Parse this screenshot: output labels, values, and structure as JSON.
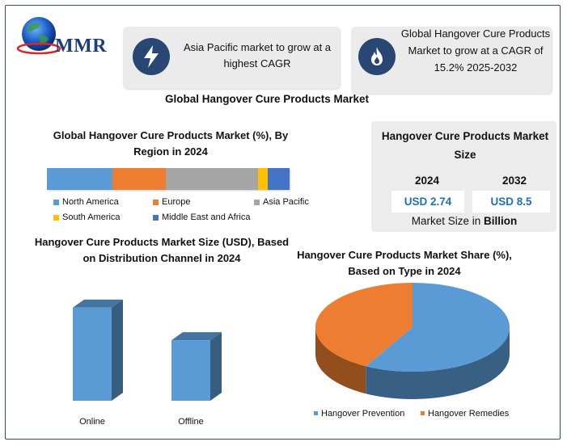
{
  "brand": {
    "name": "MMR"
  },
  "highlights": [
    {
      "icon": "lightning-icon",
      "text": "Asia Pacific market to grow at a highest CAGR"
    },
    {
      "icon": "flame-icon",
      "text": "Global Hangover Cure Products Market to grow at a CAGR of 15.2% 2025-2032"
    }
  ],
  "main_title": "Global Hangover Cure Products Market",
  "market_size": {
    "title": "Hangover Cure Products Market Size",
    "years": [
      {
        "year": "2024",
        "value": "USD 2.74"
      },
      {
        "year": "2032",
        "value": "USD 8.5"
      }
    ],
    "note_prefix": "Market Size in",
    "note_bold": "Billion"
  },
  "chart_data": [
    {
      "type": "bar",
      "orientation": "horizontal-stacked",
      "title": "Global Hangover Cure Products Market (%), By Region in 2024",
      "categories": [
        "North America",
        "Europe",
        "Asia Pacific",
        "South America",
        "Middle East and Africa"
      ],
      "values": [
        27,
        22,
        38,
        4,
        9
      ],
      "colors": [
        "#5b9bd5",
        "#ed7d31",
        "#a5a5a5",
        "#ffc000",
        "#4472c4"
      ],
      "legend": "bottom"
    },
    {
      "type": "bar",
      "title": "Hangover Cure Products Market Size (USD), Based on Distribution Channel in 2024",
      "categories": [
        "Online",
        "Offline"
      ],
      "values": [
        60,
        39
      ],
      "color": "#5b9bd5"
    },
    {
      "type": "pie",
      "title": "Hangover Cure Products Market Share (%), Based on Type in 2024",
      "categories": [
        "Hangover Prevention",
        "Hangover Remedies"
      ],
      "values": [
        58,
        42
      ],
      "colors": [
        "#5b9bd5",
        "#ed7d31"
      ],
      "legend": "bottom"
    }
  ]
}
